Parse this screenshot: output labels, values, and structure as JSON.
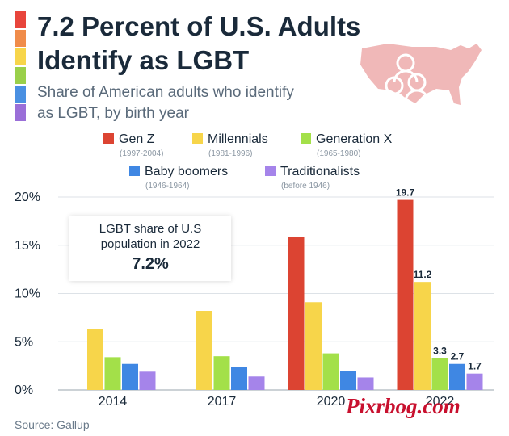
{
  "colors": {
    "gen_z": "#dc4432",
    "millennials": "#f7d54a",
    "gen_x": "#a3e049",
    "boomers": "#3f87e3",
    "traditionalists": "#a584ea",
    "rainbow": [
      "#e8453c",
      "#f08c4a",
      "#f7d54a",
      "#9ad04a",
      "#4a90e2",
      "#9a6fd8"
    ]
  },
  "header": {
    "title": "7.2 Percent of U.S. Adults Identify as LGBT",
    "subtitle": "Share of American adults who identify as LGBT, by birth year",
    "icon": "us-map-people-icon"
  },
  "callout": {
    "line1": "LGBT share of U.S",
    "line2": "population in 2022",
    "value": "7.2%"
  },
  "footer": {
    "source": "Source: Gallup",
    "watermark": "Pixrbog.com"
  },
  "legend": [
    {
      "name": "Gen Z",
      "range": "(1997-2004)"
    },
    {
      "name": "Millennials",
      "range": "(1981-1996)"
    },
    {
      "name": "Generation X",
      "range": "(1965-1980)"
    },
    {
      "name": "Baby boomers",
      "range": "(1946-1964)"
    },
    {
      "name": "Traditionalists",
      "range": "(before 1946)"
    }
  ],
  "chart_data": {
    "type": "bar",
    "title": "7.2 Percent of U.S. Adults Identify as LGBT",
    "subtitle": "Share of American adults who identify as LGBT, by birth year",
    "categories": [
      "2014",
      "2017",
      "2020",
      "2022"
    ],
    "series": [
      {
        "name": "Gen Z",
        "values": [
          null,
          null,
          15.9,
          19.7
        ]
      },
      {
        "name": "Millennials",
        "values": [
          6.3,
          8.2,
          9.1,
          11.2
        ]
      },
      {
        "name": "Generation X",
        "values": [
          3.4,
          3.5,
          3.8,
          3.3
        ]
      },
      {
        "name": "Baby boomers",
        "values": [
          2.7,
          2.4,
          2.0,
          2.7
        ]
      },
      {
        "name": "Traditionalists",
        "values": [
          1.9,
          1.4,
          1.3,
          1.7
        ]
      }
    ],
    "data_labels": [
      {
        "series": "Gen Z",
        "category": "2022",
        "text": "19.7"
      },
      {
        "series": "Millennials",
        "category": "2022",
        "text": "11.2"
      },
      {
        "series": "Generation X",
        "category": "2022",
        "text": "3.3"
      },
      {
        "series": "Baby boomers",
        "category": "2022",
        "text": "2.7"
      },
      {
        "series": "Traditionalists",
        "category": "2022",
        "text": "1.7"
      }
    ],
    "yticks": [
      "0%",
      "5%",
      "10%",
      "15%",
      "20%"
    ],
    "ylim": [
      0,
      20
    ],
    "grid": true,
    "legend_position": "top"
  }
}
